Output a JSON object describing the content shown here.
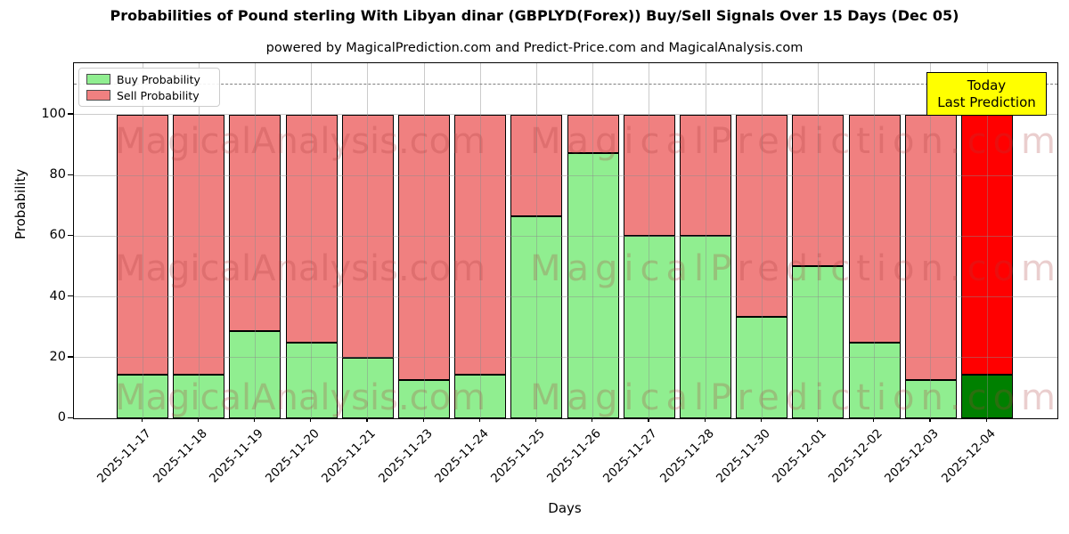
{
  "title": "Probabilities of Pound sterling With Libyan dinar (GBPLYD(Forex)) Buy/Sell Signals Over 15 Days (Dec 05)",
  "subtitle": "powered by MagicalPrediction.com and Predict-Price.com and MagicalAnalysis.com",
  "legend": {
    "items": [
      {
        "label": "Buy Probability",
        "color": "#90ee90"
      },
      {
        "label": "Sell Probability",
        "color": "#f08080"
      }
    ]
  },
  "annotation": {
    "line1": "Today",
    "line2": "Last Prediction",
    "bg_color": "#ffff00"
  },
  "watermarks": {
    "left": "MagicalAnalysis.com",
    "right": "MagicalPrediction.com"
  },
  "chart_data": {
    "type": "bar",
    "stacked": true,
    "title": "Probabilities of Pound sterling With Libyan dinar (GBPLYD(Forex)) Buy/Sell Signals Over 15 Days (Dec 05)",
    "xlabel": "Days",
    "ylabel": "Probability",
    "categories": [
      "2025-11-17",
      "2025-11-18",
      "2025-11-19",
      "2025-11-20",
      "2025-11-21",
      "2025-11-23",
      "2025-11-24",
      "2025-11-25",
      "2025-11-26",
      "2025-11-27",
      "2025-11-28",
      "2025-11-30",
      "2025-12-01",
      "2025-12-02",
      "2025-12-03",
      "2025-12-04"
    ],
    "series": [
      {
        "name": "Buy Probability",
        "color": "#90ee90",
        "values": [
          14.3,
          14.3,
          28.6,
          25,
          20,
          12.5,
          14.3,
          66.7,
          87.5,
          60,
          60,
          33.3,
          50,
          25,
          12.5,
          14.3
        ]
      },
      {
        "name": "Sell Probability",
        "color": "#f08080",
        "values": [
          85.7,
          85.7,
          71.4,
          75,
          80,
          87.5,
          85.7,
          33.3,
          12.5,
          40,
          40,
          66.7,
          50,
          75,
          87.5,
          85.7
        ]
      }
    ],
    "last_bar_colors": {
      "buy": "#008000",
      "sell": "#ff0000"
    },
    "yticks": [
      0,
      20,
      40,
      60,
      80,
      100
    ],
    "ylim": [
      0,
      117
    ],
    "dashed_line_y": 110,
    "grid": true,
    "legend_position": "upper left"
  }
}
